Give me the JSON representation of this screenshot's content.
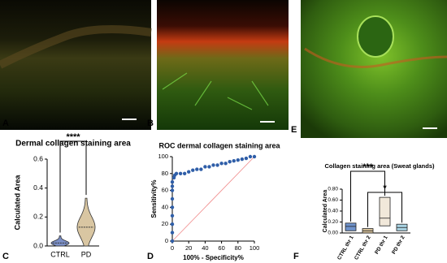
{
  "figure": {
    "panel_labels": [
      "A",
      "B",
      "E",
      "C",
      "D",
      "F"
    ]
  },
  "chart_data": [
    {
      "type": "violin",
      "title": "Dermal collagen staining area",
      "y_label": "Calculated Area",
      "categories": [
        "CTRL",
        "PD"
      ],
      "min": [
        0,
        0
      ],
      "median": [
        0.02,
        0.13
      ],
      "max": [
        0.07,
        0.33
      ],
      "colors": [
        "#7b8fc6",
        "#d9c6a2"
      ],
      "ylim": [
        0,
        0.6
      ],
      "yticks": [
        {
          "value": 0,
          "label": "0.0"
        },
        {
          "value": 0.2,
          "label": "0.2"
        },
        {
          "value": 0.4,
          "label": "0.4"
        },
        {
          "value": 0.6,
          "label": "0.6"
        }
      ],
      "annotations": [
        {
          "text": "****",
          "from": 0,
          "to": 1
        }
      ]
    },
    {
      "type": "scatter",
      "title": "ROC dermal collagen staining area",
      "x_label": "100% - Specificity%",
      "y_label": "Sensitivity%",
      "x": [
        0,
        0,
        0,
        0,
        0,
        0,
        0,
        0,
        0,
        2,
        3,
        5,
        10,
        15,
        20,
        25,
        30,
        35,
        40,
        45,
        50,
        55,
        60,
        65,
        70,
        75,
        80,
        85,
        90,
        95,
        100
      ],
      "y": [
        0,
        10,
        20,
        30,
        40,
        50,
        60,
        65,
        70,
        75,
        78,
        80,
        80,
        80,
        82,
        84,
        85,
        85,
        88,
        88,
        90,
        90,
        92,
        92,
        94,
        95,
        96,
        97,
        98,
        100,
        100
      ],
      "color": "#2f5ea8",
      "reference_line_color": "#f08a8a",
      "xlim": [
        0,
        100
      ],
      "ylim": [
        0,
        100
      ],
      "xticks": [
        0,
        20,
        40,
        60,
        80,
        100
      ],
      "yticks": [
        0,
        20,
        40,
        60,
        80,
        100
      ]
    },
    {
      "type": "floating_bar",
      "title": "Collagen staining area (Sweat glands)",
      "y_label": "Calculated Area",
      "categories": [
        "CTRL thr 1",
        "CTRL thr 2",
        "PD thr 1",
        "PD thr 2"
      ],
      "low": [
        0.04,
        0,
        0.13,
        0.04
      ],
      "high": [
        0.18,
        0.08,
        0.65,
        0.16
      ],
      "mean": [
        0.12,
        0.04,
        0.27,
        0.1
      ],
      "colors": [
        "#6f93cc",
        "#d8c39b",
        "#f1e8da",
        "#a9d3e3"
      ],
      "ylim": [
        0,
        0.8
      ],
      "yticks": [
        {
          "value": 0,
          "label": "0.00"
        },
        {
          "value": 0.2,
          "label": "0.20"
        },
        {
          "value": 0.4,
          "label": "0.40"
        },
        {
          "value": 0.6,
          "label": "0.60"
        },
        {
          "value": 0.8,
          "label": "0.80"
        }
      ],
      "annotations": [
        {
          "text": "***",
          "from": 0,
          "to": 2
        },
        {
          "text": "*",
          "from": 1,
          "to": 3
        }
      ]
    }
  ]
}
